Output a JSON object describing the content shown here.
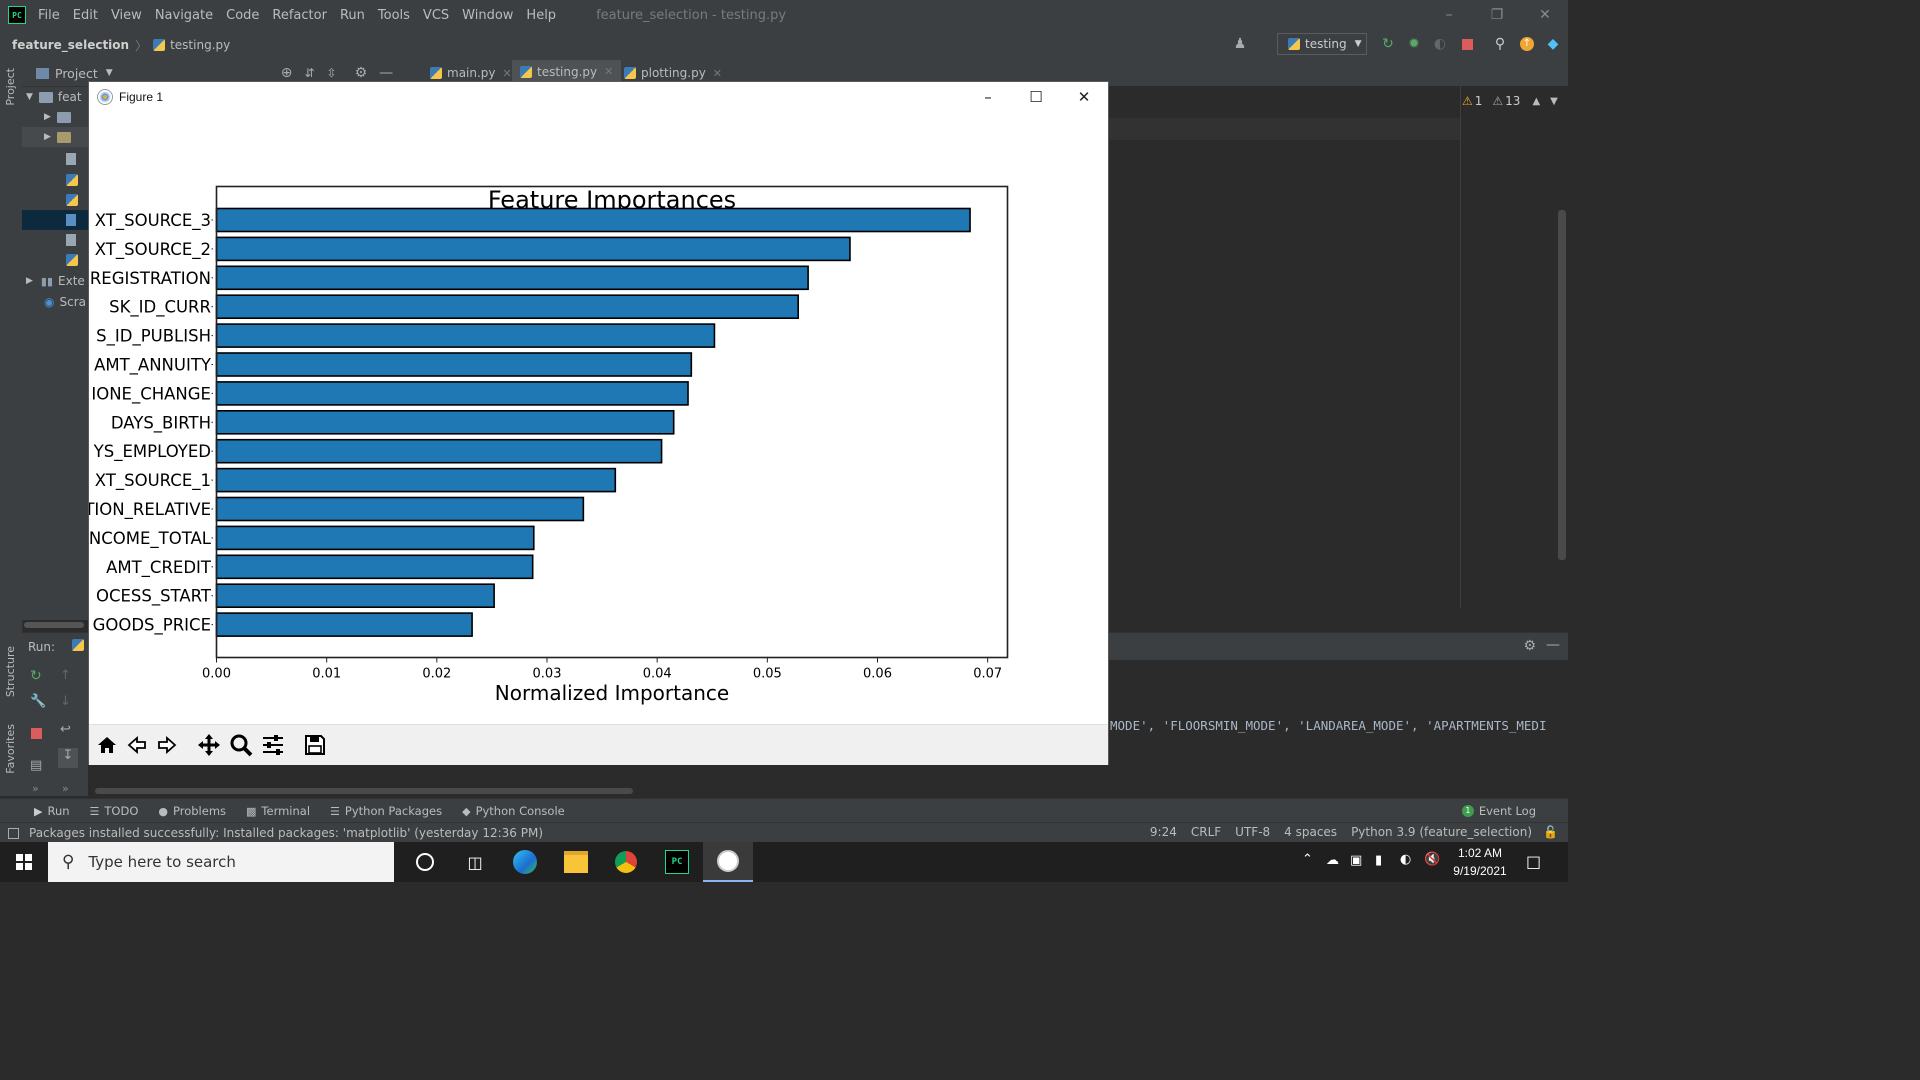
{
  "ide": {
    "menu": [
      "File",
      "Edit",
      "View",
      "Navigate",
      "Code",
      "Refactor",
      "Run",
      "Tools",
      "VCS",
      "Window",
      "Help"
    ],
    "window_title": "feature_selection - testing.py",
    "breadcrumb": {
      "project": "feature_selection",
      "file": "testing.py"
    },
    "run_config": "testing",
    "project_label": "Project",
    "tree_items": [
      "feat",
      "",
      "",
      "",
      "",
      "",
      "",
      "",
      "",
      "Exte",
      "Scra"
    ],
    "tabs": [
      {
        "label": "main.py",
        "active": false
      },
      {
        "label": "testing.py",
        "active": true
      },
      {
        "label": "plotting.py",
        "active": false
      }
    ],
    "warnings": {
      "errors": "1",
      "warnings": "13"
    },
    "left_strip": {
      "project": "Project",
      "structure": "Structure",
      "favorites": "Favorites"
    },
    "run_label": "Run:",
    "console_text": "MODE', 'FLOORSMIN_MODE', 'LANDAREA_MODE', 'APARTMENTS_MEDI",
    "tool_windows": [
      "Run",
      "TODO",
      "Problems",
      "Terminal",
      "Python Packages",
      "Python Console"
    ],
    "event_log": "Event Log",
    "event_log_count": "1",
    "status_message": "Packages installed successfully: Installed packages: 'matplotlib' (yesterday 12:36 PM)",
    "status_right": [
      "9:24",
      "CRLF",
      "UTF-8",
      "4 spaces",
      "Python 3.9 (feature_selection)"
    ]
  },
  "figure": {
    "title": "Figure 1"
  },
  "chart_data": {
    "type": "bar",
    "orientation": "horizontal",
    "title": "Feature Importances",
    "xlabel": "Normalized Importance",
    "ylabel": "",
    "xlim": [
      0,
      0.0718
    ],
    "xticks": [
      "0.00",
      "0.01",
      "0.02",
      "0.03",
      "0.04",
      "0.05",
      "0.06",
      "0.07"
    ],
    "bar_color": "#1f77b4",
    "categories": [
      "XT_SOURCE_3",
      "XT_SOURCE_2",
      "REGISTRATION",
      "SK_ID_CURR",
      "S_ID_PUBLISH",
      "AMT_ANNUITY",
      "IONE_CHANGE",
      "DAYS_BIRTH",
      "YS_EMPLOYED",
      "XT_SOURCE_1",
      "TION_RELATIVE",
      "NCOME_TOTAL",
      "AMT_CREDIT",
      "OCESS_START",
      "GOODS_PRICE"
    ],
    "values": [
      0.0684,
      0.0575,
      0.0537,
      0.0528,
      0.0452,
      0.0431,
      0.0428,
      0.0415,
      0.0404,
      0.0362,
      0.0333,
      0.0288,
      0.0287,
      0.0252,
      0.0232
    ]
  },
  "taskbar": {
    "search_placeholder": "Type here to search",
    "time": "1:02 AM",
    "date": "9/19/2021"
  }
}
